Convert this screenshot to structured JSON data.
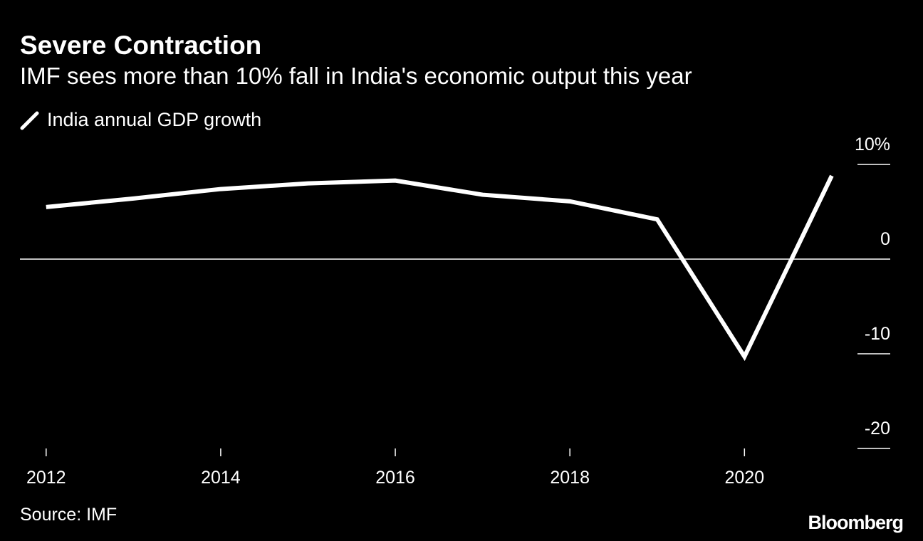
{
  "chart_data": {
    "type": "line",
    "title": "Severe Contraction",
    "subtitle": "IMF sees more than 10% fall in India's economic output this year",
    "source": "Source: IMF",
    "logo": "Bloomberg",
    "x": [
      2012,
      2013,
      2014,
      2015,
      2016,
      2017,
      2018,
      2019,
      2020,
      2021
    ],
    "series": [
      {
        "name": "India annual GDP growth",
        "color": "#ffffff",
        "values": [
          5.5,
          6.4,
          7.4,
          8.0,
          8.3,
          6.8,
          6.1,
          4.2,
          -10.3,
          8.8
        ]
      }
    ],
    "xlim": [
      2011.7,
      2021.67
    ],
    "xticks": [
      2012,
      2014,
      2016,
      2018,
      2020
    ],
    "ylim": [
      -20,
      10
    ],
    "yticks": [
      {
        "value": 10,
        "label": "10%"
      },
      0,
      -10,
      -20
    ]
  }
}
